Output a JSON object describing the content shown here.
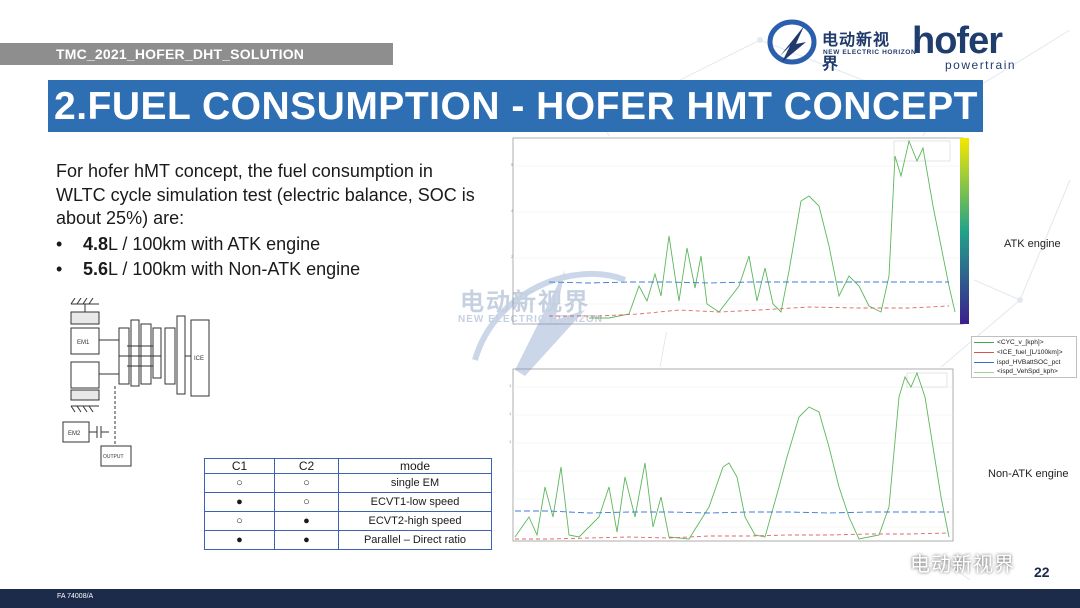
{
  "header": {
    "tag": "TMC_2021_HOFER_DHT_SOLUTION",
    "title": "2.FUEL CONSUMPTION - HOFER HMT CONCEPT"
  },
  "logos": {
    "ne_zh": "电动新视界",
    "ne_en": "NEW ELECTRIC HORIZON",
    "hofer_word": "hofer",
    "hofer_sub": "powertrain"
  },
  "content": {
    "paragraph": "For hofer hMT concept, the fuel consumption in WLTC cycle simulation test (electric balance, SOC is about 25%) are:",
    "bullets": [
      {
        "value": "4.8",
        "text": "L / 100km with ATK engine"
      },
      {
        "value": "5.6",
        "text": "L / 100km with Non-ATK engine"
      }
    ]
  },
  "schematic": {
    "labels": [
      "EM1",
      "ICE",
      "EM2",
      "OUTPUT"
    ]
  },
  "mode_table": {
    "headers": [
      "C1",
      "C2",
      "mode"
    ],
    "rows": [
      {
        "c1": "○",
        "c2": "○",
        "mode": "single EM"
      },
      {
        "c1": "●",
        "c2": "○",
        "mode": "ECVT1-low speed"
      },
      {
        "c1": "○",
        "c2": "●",
        "mode": "ECVT2-high speed"
      },
      {
        "c1": "●",
        "c2": "●",
        "mode": "Parallel – Direct ratio"
      }
    ]
  },
  "charts": {
    "atk_label": "ATK engine",
    "non_atk_label": "Non-ATK engine",
    "legend": [
      {
        "label": "<CYC_v_[kph]>",
        "color": "#44aa44"
      },
      {
        "label": "<ICE_fuel_[L/100km]>",
        "color": "#d9534f"
      },
      {
        "label": "ispd_HVBattSOC_pct",
        "color": "#2f6fd6"
      },
      {
        "label": "<ispd_VehSpd_kph>",
        "color": "#9bcf8b"
      }
    ],
    "colors": {
      "speed": "#5cb85c",
      "fuel": "#e06666",
      "soc": "#3c78d8",
      "colorbar_top": "#f5e800",
      "colorbar_bottom": "#3b1e8e"
    }
  },
  "watermark": {
    "zh": "电动新视界",
    "en": "NEW ELECTRIC HORIZON"
  },
  "footer": {
    "doc_code": "FA 74008/A",
    "wechat": "电动新视界",
    "page": "22"
  }
}
